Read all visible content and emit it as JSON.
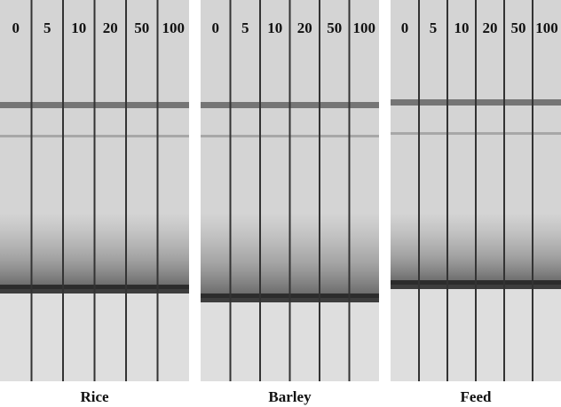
{
  "panels": [
    {
      "name": "Rice",
      "lanes": [
        "0",
        "5",
        "10",
        "20",
        "50",
        "100"
      ]
    },
    {
      "name": "Barley",
      "lanes": [
        "0",
        "5",
        "10",
        "20",
        "50",
        "100"
      ]
    },
    {
      "name": "Feed",
      "lanes": [
        "0",
        "5",
        "10",
        "20",
        "50",
        "100"
      ]
    }
  ]
}
